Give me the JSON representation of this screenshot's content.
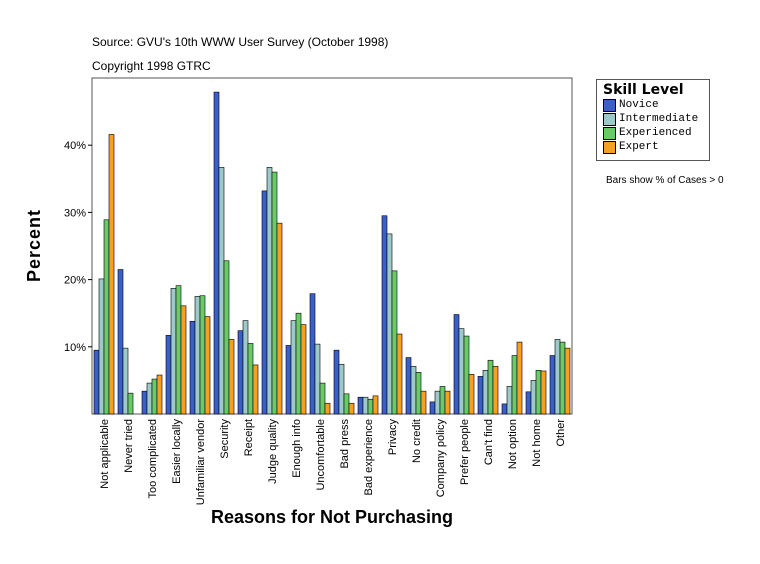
{
  "chart_data": {
    "type": "bar",
    "source": "Source: GVU's 10th WWW User Survey (October 1998)",
    "copyright": "Copyright 1998 GTRC",
    "xlabel": "Reasons for Not Purchasing",
    "ylabel": "Percent",
    "note": "Bars show % of Cases > 0",
    "legend_title": "Skill Level",
    "legend_placement": "right",
    "ylim": [
      0,
      50
    ],
    "yticks": [
      10,
      20,
      30,
      40
    ],
    "ytick_labels": [
      "10%",
      "20%",
      "30%",
      "40%"
    ],
    "categories": [
      "Not applicable",
      "Never tried",
      "Too complicated",
      "Easier locally",
      "Unfamiliar vendor",
      "Security",
      "Receipt",
      "Judge quality",
      "Enough info",
      "Uncomfortable",
      "Bad press",
      "Bad experience",
      "Privacy",
      "No credit",
      "Company policy",
      "Prefer people",
      "Can't find",
      "Not option",
      "Not home",
      "Other"
    ],
    "series": [
      {
        "name": "Novice",
        "color": "#3a5fcd",
        "values": [
          9.5,
          21.5,
          3.4,
          11.7,
          13.8,
          47.9,
          12.4,
          33.2,
          10.2,
          17.9,
          9.5,
          2.5,
          29.5,
          8.4,
          1.8,
          14.8,
          5.6,
          1.5,
          3.3,
          8.7
        ]
      },
      {
        "name": "Intermediate",
        "color": "#9ccaca",
        "values": [
          20.1,
          9.8,
          4.6,
          18.7,
          17.5,
          36.7,
          13.9,
          36.7,
          13.9,
          10.4,
          7.4,
          2.5,
          26.8,
          7.1,
          3.4,
          12.7,
          6.5,
          4.1,
          5.0,
          11.1
        ]
      },
      {
        "name": "Experienced",
        "color": "#66cc66",
        "values": [
          28.9,
          3.1,
          5.2,
          19.1,
          17.6,
          22.8,
          10.5,
          36.0,
          15.0,
          4.6,
          3.0,
          2.2,
          21.3,
          6.2,
          4.1,
          11.6,
          8.0,
          8.7,
          6.5,
          10.7
        ]
      },
      {
        "name": "Expert",
        "color": "#f5a01e",
        "values": [
          41.6,
          0,
          5.8,
          16.1,
          14.5,
          11.1,
          7.3,
          28.4,
          13.3,
          1.6,
          1.6,
          2.7,
          11.9,
          3.4,
          3.4,
          5.9,
          7.1,
          10.7,
          6.4,
          9.8
        ]
      }
    ]
  }
}
